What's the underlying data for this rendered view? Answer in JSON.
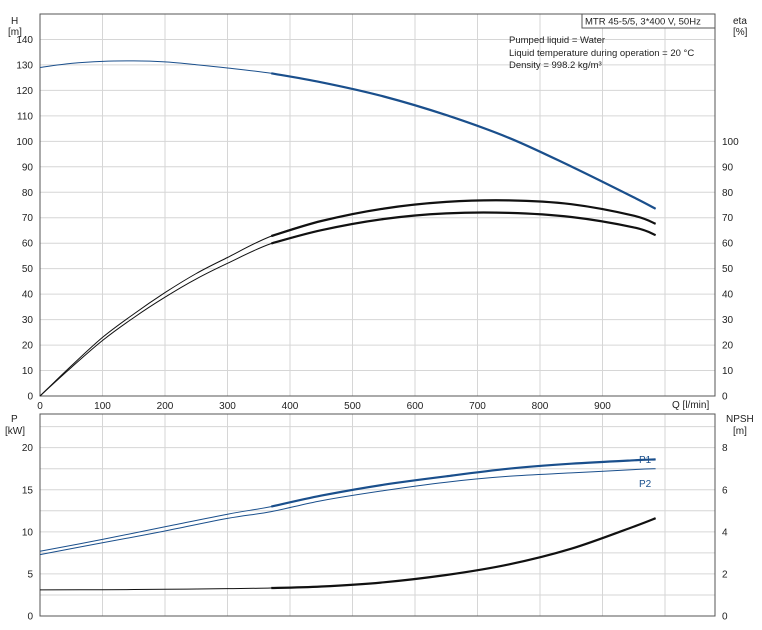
{
  "colors": {
    "blue": "#1a4f8c",
    "black": "#111111",
    "grid": "#d6d6d6"
  },
  "legend": {
    "pump_title": "MTR 45-5/5, 3*400 V, 50Hz",
    "lines": [
      "Pumped liquid = Water",
      "Liquid temperature during operation = 20 °C",
      "Density = 998.2 kg/m³"
    ]
  },
  "chart_data": [
    {
      "type": "line",
      "xlabel": "Q [l/min]",
      "x_ticks": [
        0,
        100,
        200,
        300,
        400,
        500,
        600,
        700,
        800,
        900
      ],
      "xlim": [
        0,
        1080
      ],
      "left_axis": {
        "label_line1": "H",
        "label_line2": "[m]",
        "ylim": [
          0,
          150
        ],
        "ticks": [
          0,
          10,
          20,
          30,
          40,
          50,
          60,
          70,
          80,
          90,
          100,
          110,
          120,
          130,
          140
        ]
      },
      "right_axis": {
        "label_line1": "eta",
        "label_line2": "[%]",
        "ylim": [
          0,
          150
        ],
        "ticks": [
          0,
          10,
          20,
          30,
          40,
          50,
          60,
          70,
          80,
          90,
          100
        ]
      },
      "grid": true,
      "series": [
        {
          "axis": "left",
          "color": "blue",
          "bold_from": 370,
          "x": [
            0,
            50,
            100,
            150,
            200,
            250,
            300,
            370,
            450,
            550,
            650,
            750,
            850,
            950,
            985
          ],
          "y": [
            129,
            130.6,
            131.4,
            131.6,
            131.2,
            130.1,
            128.8,
            126.7,
            123.2,
            117.6,
            110.3,
            101.4,
            90.1,
            78,
            73.5
          ]
        },
        {
          "axis": "right",
          "color": "black",
          "bold_from": 370,
          "x": [
            0,
            50,
            100,
            150,
            200,
            250,
            300,
            370,
            450,
            550,
            650,
            750,
            850,
            950,
            985
          ],
          "y": [
            0,
            11.8,
            23,
            32.2,
            40.6,
            48.1,
            54.4,
            62.8,
            68.7,
            73.6,
            76.2,
            76.8,
            75.3,
            70.8,
            67.6
          ]
        },
        {
          "axis": "right",
          "color": "black",
          "bold_from": 370,
          "x": [
            0,
            50,
            100,
            150,
            200,
            250,
            300,
            370,
            450,
            550,
            650,
            750,
            850,
            950,
            985
          ],
          "y": [
            0,
            11.2,
            21.8,
            30.8,
            38.8,
            46,
            52.1,
            59.9,
            65.1,
            69.5,
            71.7,
            71.9,
            70.3,
            66.2,
            63.2
          ]
        }
      ]
    },
    {
      "type": "line",
      "x_ticks": [
        0,
        100,
        200,
        300,
        400,
        500,
        600,
        700,
        800,
        900
      ],
      "xlim": [
        0,
        1080
      ],
      "left_axis": {
        "label_line1": "P",
        "label_line2": "[kW]",
        "ylim": [
          0,
          24
        ],
        "ticks": [
          0,
          5,
          10,
          15,
          20
        ]
      },
      "right_axis": {
        "label_line1": "NPSH",
        "label_line2": "[m]",
        "ylim": [
          0,
          9.6
        ],
        "ticks": [
          0,
          2,
          4,
          6,
          8
        ]
      },
      "grid": true,
      "series": [
        {
          "name": "P1",
          "axis": "left",
          "color": "blue",
          "bold_from": 370,
          "x": [
            0,
            100,
            200,
            300,
            370,
            450,
            550,
            650,
            750,
            850,
            950,
            985
          ],
          "y": [
            7.7,
            9.1,
            10.6,
            12.1,
            13,
            14.3,
            15.6,
            16.6,
            17.5,
            18.1,
            18.5,
            18.6
          ]
        },
        {
          "name": "P2",
          "axis": "left",
          "color": "blue",
          "bold_from": 9999,
          "x": [
            0,
            100,
            200,
            300,
            370,
            450,
            550,
            650,
            750,
            850,
            950,
            985
          ],
          "y": [
            7.3,
            8.7,
            10.1,
            11.6,
            12.4,
            13.7,
            14.9,
            15.9,
            16.6,
            17,
            17.4,
            17.5
          ]
        },
        {
          "axis": "right",
          "color": "black",
          "bold_from": 370,
          "x": [
            0,
            100,
            200,
            300,
            370,
            450,
            550,
            650,
            750,
            850,
            950,
            985
          ],
          "y": [
            1.24,
            1.25,
            1.27,
            1.3,
            1.33,
            1.4,
            1.6,
            1.95,
            2.45,
            3.2,
            4.25,
            4.65
          ]
        }
      ]
    }
  ]
}
